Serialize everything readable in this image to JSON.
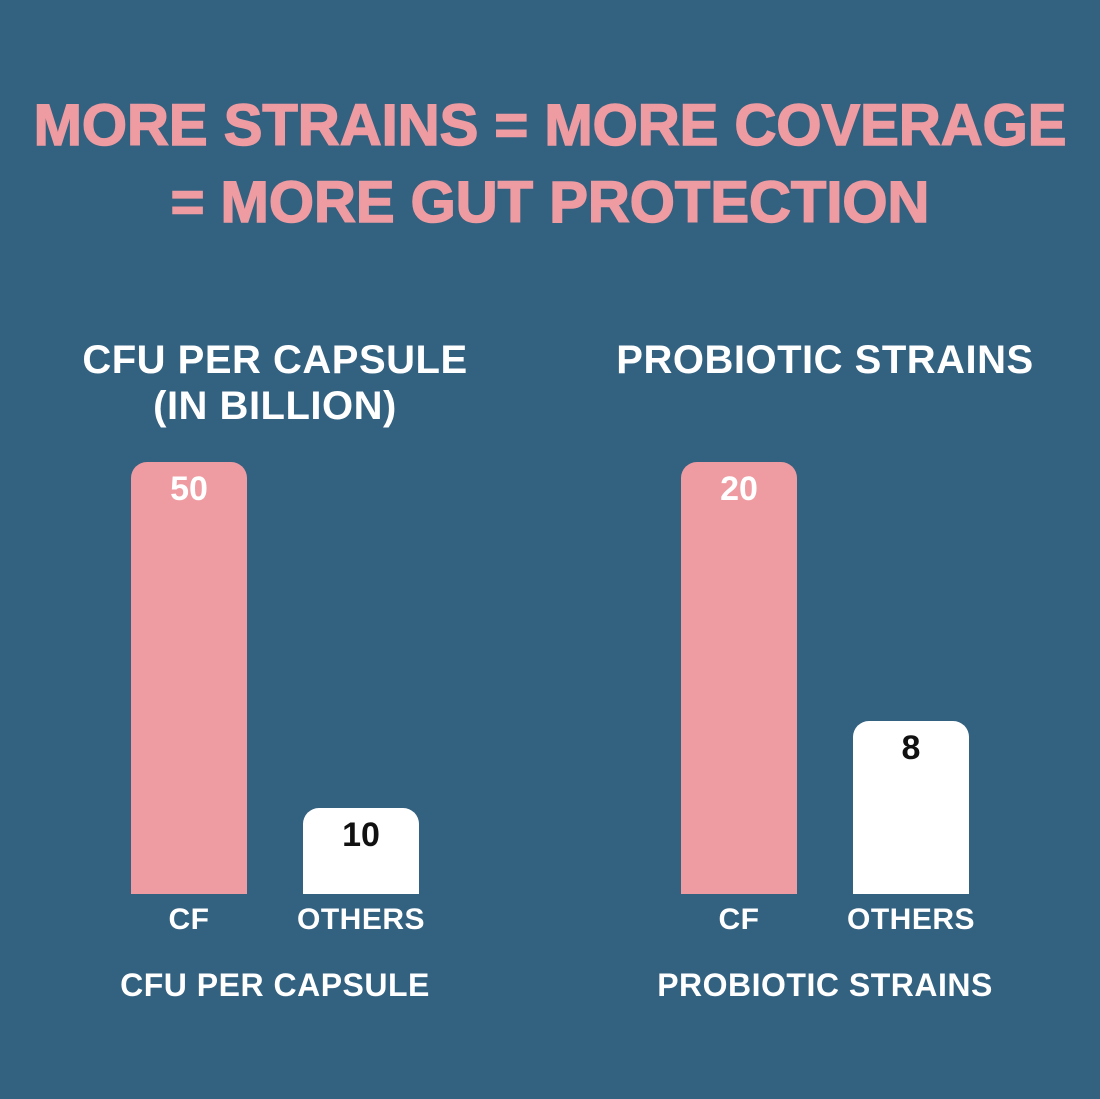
{
  "background_color": "#336180",
  "accent_pink": "#ee9ba1",
  "header": {
    "title_line1": "MORE STRAINS = MORE COVERAGE",
    "title_line2": "= MORE GUT PROTECTION"
  },
  "chart_data": [
    {
      "type": "bar",
      "title": "CFU PER CAPSULE\n(IN BILLION)",
      "categories": [
        "CF",
        "OTHERS"
      ],
      "values": [
        50,
        10
      ],
      "value_labels": [
        "50",
        "10"
      ],
      "bar_colors": [
        "#ee9ba1",
        "#ffffff"
      ],
      "value_text_colors": [
        "#ffffff",
        "#111111"
      ],
      "category_label_color": "#ffffff",
      "caption": "CFU PER CAPSULE",
      "ylim": [
        0,
        50
      ],
      "grid": false,
      "legend": false
    },
    {
      "type": "bar",
      "title": "PROBIOTIC STRAINS",
      "categories": [
        "CF",
        "OTHERS"
      ],
      "values": [
        20,
        8
      ],
      "value_labels": [
        "20",
        "8"
      ],
      "bar_colors": [
        "#ee9ba1",
        "#ffffff"
      ],
      "value_text_colors": [
        "#ffffff",
        "#111111"
      ],
      "category_label_color": "#ffffff",
      "caption": "PROBIOTIC STRAINS",
      "ylim": [
        0,
        20
      ],
      "grid": false,
      "legend": false
    }
  ]
}
